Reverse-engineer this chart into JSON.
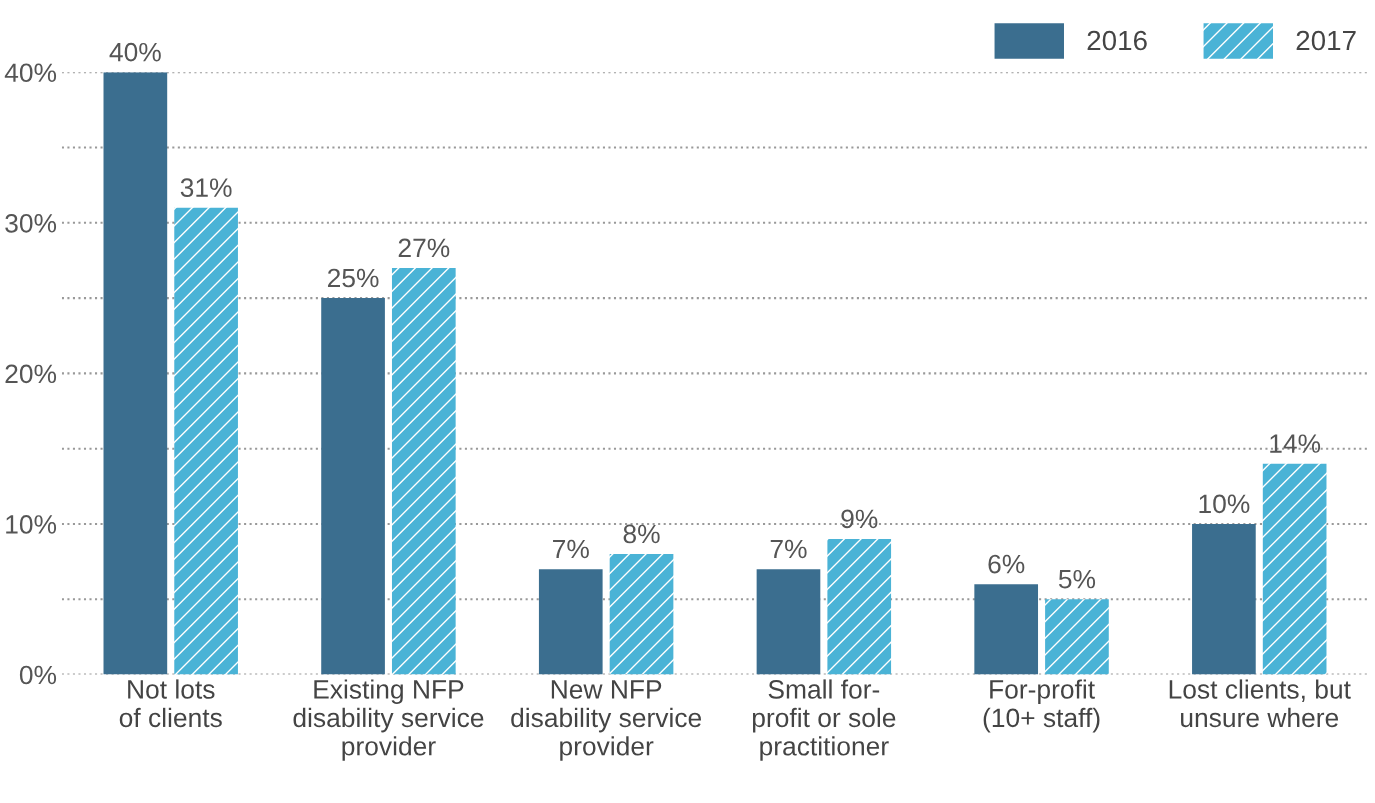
{
  "chart_data": {
    "type": "bar",
    "categories": [
      "Not lots\nof clients",
      "Existing NFP\ndisability service\nprovider",
      "New NFP\ndisability service\nprovider",
      "Small for-\nprofit or sole\npractitioner",
      "For-profit\n(10+ staff)",
      "Lost clients, but\nunsure where"
    ],
    "series": [
      {
        "name": "2016",
        "color": "#3b6e8f",
        "values": [
          40,
          25,
          7,
          7,
          6,
          10
        ],
        "value_labels": [
          "40%",
          "25%",
          "7%",
          "7%",
          "6%",
          "10%"
        ]
      },
      {
        "name": "2017",
        "color": "#4ab3d6",
        "values": [
          31,
          27,
          8,
          9,
          5,
          14
        ],
        "value_labels": [
          "31%",
          "27%",
          "8%",
          "9%",
          "5%",
          "14%"
        ]
      }
    ],
    "ylim": [
      0,
      40
    ],
    "yticks": [
      {
        "value": 0,
        "label": "0%"
      },
      {
        "value": 5,
        "label": null
      },
      {
        "value": 10,
        "label": "10%"
      },
      {
        "value": 15,
        "label": null
      },
      {
        "value": 20,
        "label": "20%"
      },
      {
        "value": 25,
        "label": null
      },
      {
        "value": 30,
        "label": "30%"
      },
      {
        "value": 35,
        "label": null
      },
      {
        "value": 40,
        "label": "40%"
      }
    ],
    "grid": "y",
    "legend": "top right"
  }
}
